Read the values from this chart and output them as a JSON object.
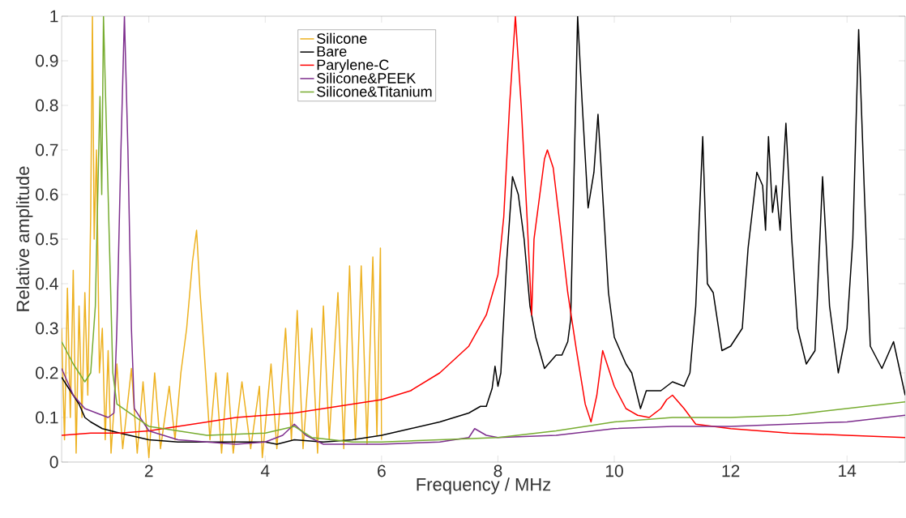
{
  "chart_data": {
    "type": "line",
    "xlabel": "Frequency / MHz",
    "ylabel": "Relative amplitude",
    "xlim": [
      0.5,
      15
    ],
    "ylim": [
      0,
      1
    ],
    "xticks": [
      2,
      4,
      6,
      8,
      10,
      12,
      14
    ],
    "yticks": [
      0,
      0.1,
      0.2,
      0.3,
      0.4,
      0.5,
      0.6,
      0.7,
      0.8,
      0.9,
      1
    ],
    "legend": "top",
    "grid": false,
    "marker": "none",
    "line_style": "solid",
    "series": [
      {
        "name": "Silicone",
        "color": "#edb120",
        "x": [
          0.5,
          0.55,
          0.6,
          0.65,
          0.7,
          0.75,
          0.8,
          0.85,
          0.9,
          0.95,
          1.0,
          1.03,
          1.06,
          1.1,
          1.15,
          1.2,
          1.25,
          1.3,
          1.35,
          1.45,
          1.55,
          1.7,
          1.8,
          1.9,
          2.0,
          2.1,
          2.2,
          2.35,
          2.45,
          2.55,
          2.65,
          2.75,
          2.82,
          2.88,
          2.95,
          3.05,
          3.15,
          3.25,
          3.35,
          3.45,
          3.6,
          3.75,
          3.9,
          3.95,
          4.1,
          4.2,
          4.35,
          4.45,
          4.55,
          4.65,
          4.8,
          4.9,
          5.0,
          5.1,
          5.25,
          5.35,
          5.45,
          5.55,
          5.65,
          5.75,
          5.85,
          5.92,
          5.98,
          6.0
        ],
        "values": [
          0.3,
          0.05,
          0.39,
          0.1,
          0.43,
          0.02,
          0.35,
          0.1,
          0.38,
          0.15,
          0.55,
          1.0,
          0.5,
          0.7,
          0.2,
          0.3,
          0.05,
          0.25,
          0.02,
          0.22,
          0.03,
          0.21,
          0.02,
          0.18,
          0.01,
          0.2,
          0.03,
          0.17,
          0.05,
          0.2,
          0.3,
          0.45,
          0.52,
          0.38,
          0.25,
          0.05,
          0.2,
          0.02,
          0.2,
          0.02,
          0.18,
          0.03,
          0.17,
          0.01,
          0.22,
          0.03,
          0.3,
          0.05,
          0.34,
          0.03,
          0.3,
          0.02,
          0.35,
          0.05,
          0.38,
          0.03,
          0.44,
          0.05,
          0.44,
          0.04,
          0.46,
          0.06,
          0.48,
          0.05
        ]
      },
      {
        "name": "Bare",
        "color": "#000000",
        "x": [
          0.5,
          0.6,
          0.65,
          0.7,
          0.8,
          0.9,
          1.0,
          1.2,
          1.5,
          2,
          2.5,
          3,
          3.5,
          4,
          4.2,
          4.5,
          5,
          5.5,
          6,
          6.5,
          7,
          7.5,
          7.7,
          7.8,
          7.9,
          7.95,
          8.0,
          8.05,
          8.15,
          8.25,
          8.35,
          8.45,
          8.55,
          8.65,
          8.8,
          9.0,
          9.1,
          9.2,
          9.25,
          9.3,
          9.37,
          9.45,
          9.55,
          9.65,
          9.72,
          9.8,
          9.9,
          10.0,
          10.1,
          10.2,
          10.3,
          10.45,
          10.55,
          10.8,
          11.0,
          11.2,
          11.3,
          11.4,
          11.52,
          11.6,
          11.7,
          11.85,
          12.0,
          12.2,
          12.3,
          12.45,
          12.55,
          12.6,
          12.65,
          12.72,
          12.78,
          12.85,
          12.95,
          13.05,
          13.15,
          13.3,
          13.45,
          13.58,
          13.7,
          13.85,
          14.0,
          14.1,
          14.2,
          14.3,
          14.4,
          14.6,
          14.8,
          14.95,
          15.0
        ],
        "values": [
          0.19,
          0.17,
          0.16,
          0.15,
          0.13,
          0.1,
          0.09,
          0.075,
          0.065,
          0.05,
          0.045,
          0.045,
          0.045,
          0.045,
          0.04,
          0.05,
          0.045,
          0.05,
          0.06,
          0.075,
          0.09,
          0.11,
          0.125,
          0.125,
          0.165,
          0.215,
          0.17,
          0.2,
          0.45,
          0.64,
          0.6,
          0.5,
          0.35,
          0.28,
          0.21,
          0.24,
          0.24,
          0.27,
          0.32,
          0.6,
          1.0,
          0.8,
          0.57,
          0.65,
          0.78,
          0.6,
          0.38,
          0.28,
          0.25,
          0.22,
          0.2,
          0.12,
          0.16,
          0.16,
          0.18,
          0.17,
          0.2,
          0.35,
          0.73,
          0.4,
          0.38,
          0.25,
          0.26,
          0.3,
          0.48,
          0.65,
          0.62,
          0.52,
          0.73,
          0.56,
          0.62,
          0.52,
          0.76,
          0.5,
          0.3,
          0.22,
          0.25,
          0.64,
          0.35,
          0.2,
          0.3,
          0.5,
          0.97,
          0.6,
          0.26,
          0.21,
          0.27,
          0.18,
          0.15
        ]
      },
      {
        "name": "Parylene-C",
        "color": "#ff0000",
        "x": [
          0.5,
          1,
          1.5,
          2,
          2.5,
          3,
          3.5,
          4,
          4.5,
          5,
          5.5,
          6,
          6.5,
          7,
          7.5,
          7.8,
          8.0,
          8.1,
          8.2,
          8.3,
          8.4,
          8.5,
          8.58,
          8.62,
          8.7,
          8.8,
          8.85,
          8.95,
          9.05,
          9.2,
          9.35,
          9.5,
          9.6,
          9.7,
          9.8,
          9.9,
          10.0,
          10.2,
          10.4,
          10.6,
          10.8,
          10.9,
          11.0,
          11.2,
          11.4,
          12,
          13,
          14,
          15
        ],
        "values": [
          0.06,
          0.065,
          0.065,
          0.07,
          0.08,
          0.09,
          0.1,
          0.105,
          0.11,
          0.12,
          0.13,
          0.14,
          0.16,
          0.2,
          0.26,
          0.33,
          0.42,
          0.55,
          0.8,
          1.0,
          0.8,
          0.55,
          0.33,
          0.5,
          0.58,
          0.68,
          0.7,
          0.66,
          0.55,
          0.38,
          0.25,
          0.13,
          0.09,
          0.15,
          0.25,
          0.21,
          0.17,
          0.12,
          0.105,
          0.1,
          0.12,
          0.14,
          0.15,
          0.12,
          0.085,
          0.075,
          0.065,
          0.06,
          0.055
        ]
      },
      {
        "name": "Silicone&PEEK",
        "color": "#7e2f8e",
        "x": [
          0.5,
          0.7,
          0.9,
          1.1,
          1.3,
          1.4,
          1.45,
          1.52,
          1.58,
          1.64,
          1.7,
          1.75,
          2,
          2.5,
          3,
          3.5,
          4,
          4.3,
          4.5,
          4.7,
          5,
          6,
          7,
          7.5,
          7.6,
          7.8,
          8,
          9,
          10,
          11,
          12,
          13,
          14,
          15
        ],
        "values": [
          0.21,
          0.15,
          0.12,
          0.11,
          0.1,
          0.11,
          0.3,
          0.7,
          1.0,
          0.7,
          0.3,
          0.12,
          0.07,
          0.05,
          0.045,
          0.04,
          0.045,
          0.06,
          0.085,
          0.06,
          0.04,
          0.04,
          0.045,
          0.055,
          0.075,
          0.06,
          0.055,
          0.06,
          0.075,
          0.08,
          0.08,
          0.085,
          0.09,
          0.105
        ]
      },
      {
        "name": "Silicone&Titanium",
        "color": "#77ac30",
        "x": [
          0.5,
          0.7,
          0.9,
          1.0,
          1.08,
          1.13,
          1.16,
          1.19,
          1.22,
          1.26,
          1.32,
          1.38,
          1.45,
          2,
          3,
          4,
          4.5,
          4.8,
          5.5,
          6,
          7,
          8,
          9,
          10,
          11,
          12,
          13,
          14,
          15
        ],
        "values": [
          0.27,
          0.22,
          0.18,
          0.2,
          0.35,
          0.65,
          0.82,
          0.6,
          1.0,
          0.8,
          0.5,
          0.2,
          0.13,
          0.08,
          0.06,
          0.065,
          0.08,
          0.055,
          0.045,
          0.045,
          0.05,
          0.055,
          0.07,
          0.09,
          0.1,
          0.1,
          0.105,
          0.12,
          0.135
        ]
      }
    ]
  }
}
